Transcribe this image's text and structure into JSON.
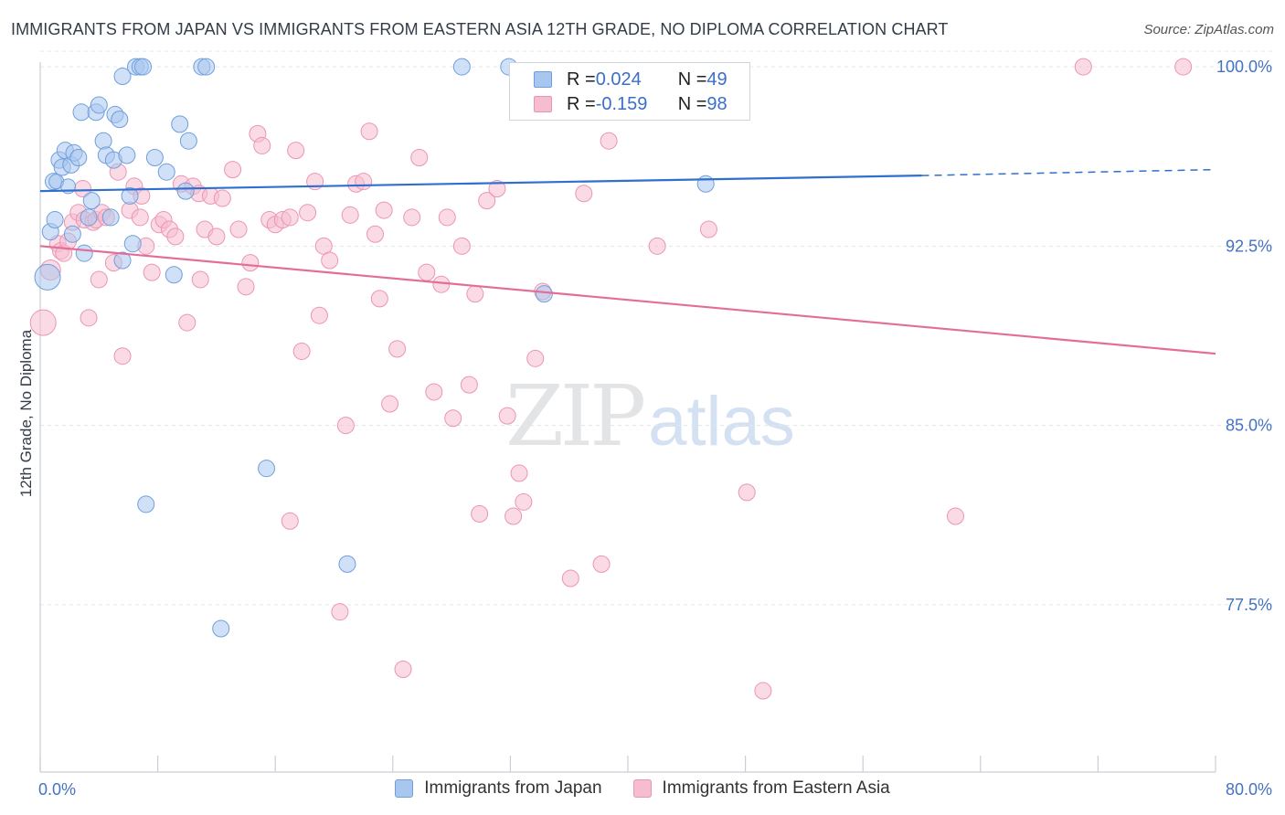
{
  "title": "IMMIGRANTS FROM JAPAN VS IMMIGRANTS FROM EASTERN ASIA 12TH GRADE, NO DIPLOMA CORRELATION CHART",
  "source": "Source: ZipAtlas.com",
  "watermark": {
    "zip": "ZIP",
    "atlas": "atlas"
  },
  "legend": {
    "rows": [
      {
        "r_label": "R = ",
        "r_value": "0.024",
        "n_label": "N = ",
        "n_value": "49"
      },
      {
        "r_label": "R = ",
        "r_value": "-0.159",
        "n_label": "N = ",
        "n_value": "98"
      }
    ]
  },
  "colors": {
    "japan_fill": "#a9c6ee",
    "japan_stroke": "#6f9fdc",
    "japan_line": "#2e6fcf",
    "asia_fill": "#f6bdd0",
    "asia_stroke": "#ec94b3",
    "asia_line": "#e36d97",
    "grid": "#e3e6ea",
    "axis_text": "#4472c4"
  },
  "chart_data": {
    "type": "scatter",
    "title": "IMMIGRANTS FROM JAPAN VS IMMIGRANTS FROM EASTERN ASIA 12TH GRADE, NO DIPLOMA CORRELATION CHART",
    "xlabel": "",
    "ylabel": "12th Grade, No Diploma",
    "xlim": [
      0,
      80
    ],
    "ylim": [
      70.5,
      100.5
    ],
    "x_tick_labels": [
      "0.0%",
      "80.0%"
    ],
    "y_ticks": [
      77.5,
      85.0,
      92.5,
      100.0
    ],
    "y_tick_labels": [
      "77.5%",
      "85.0%",
      "92.5%",
      "100.0%"
    ],
    "grid": true,
    "legend_position": "bottom",
    "series": [
      {
        "name": "Immigrants from Japan",
        "r": 0.024,
        "n": 49,
        "trend": {
          "x": [
            0,
            60
          ],
          "y": [
            94.8,
            95.45
          ],
          "dashed_to": [
            80,
            95.7
          ]
        },
        "points": [
          [
            0.5,
            91.2,
            14
          ],
          [
            0.7,
            93.1,
            9
          ],
          [
            0.9,
            95.2,
            9
          ],
          [
            1.1,
            95.2,
            8
          ],
          [
            1.3,
            96.1,
            9
          ],
          [
            1.5,
            95.8,
            9
          ],
          [
            1.7,
            96.5,
            9
          ],
          [
            1.9,
            95.0,
            8
          ],
          [
            2.1,
            95.9,
            9
          ],
          [
            2.3,
            96.4,
            9
          ],
          [
            2.6,
            96.2,
            9
          ],
          [
            2.8,
            98.1,
            9
          ],
          [
            3.0,
            92.2,
            9
          ],
          [
            3.3,
            93.7,
            9
          ],
          [
            3.8,
            98.1,
            9
          ],
          [
            4.0,
            98.4,
            9
          ],
          [
            4.3,
            96.9,
            9
          ],
          [
            4.5,
            96.3,
            9
          ],
          [
            4.8,
            93.7,
            9
          ],
          [
            5.0,
            96.1,
            9
          ],
          [
            5.1,
            98.0,
            9
          ],
          [
            5.4,
            97.8,
            9
          ],
          [
            5.6,
            99.6,
            9
          ],
          [
            5.9,
            96.3,
            9
          ],
          [
            6.1,
            94.6,
            9
          ],
          [
            6.3,
            92.6,
            9
          ],
          [
            6.5,
            100.0,
            9
          ],
          [
            6.8,
            100.0,
            9
          ],
          [
            7.0,
            100.0,
            9
          ],
          [
            7.2,
            81.7,
            9
          ],
          [
            7.8,
            96.2,
            9
          ],
          [
            8.6,
            95.6,
            9
          ],
          [
            9.1,
            91.3,
            9
          ],
          [
            9.5,
            97.6,
            9
          ],
          [
            9.9,
            94.8,
            9
          ],
          [
            10.1,
            96.9,
            9
          ],
          [
            11.0,
            100.0,
            9
          ],
          [
            11.3,
            100.0,
            9
          ],
          [
            12.3,
            76.5,
            9
          ],
          [
            15.4,
            83.2,
            9
          ],
          [
            20.9,
            79.2,
            9
          ],
          [
            28.7,
            100.0,
            9
          ],
          [
            31.9,
            100.0,
            9
          ],
          [
            34.3,
            90.5,
            9
          ],
          [
            45.3,
            95.1,
            9
          ],
          [
            2.2,
            93.0,
            9
          ],
          [
            1.0,
            93.6,
            9
          ],
          [
            3.5,
            94.4,
            9
          ],
          [
            5.6,
            91.9,
            9
          ]
        ]
      },
      {
        "name": "Immigrants from Eastern Asia",
        "r": -0.159,
        "n": 98,
        "trend": {
          "x": [
            0,
            80
          ],
          "y": [
            92.5,
            88.0
          ]
        },
        "points": [
          [
            0.2,
            89.3,
            14
          ],
          [
            0.7,
            91.5,
            11
          ],
          [
            1.2,
            92.6,
            9
          ],
          [
            1.4,
            92.3,
            9
          ],
          [
            1.6,
            92.2,
            9
          ],
          [
            1.9,
            92.7,
            9
          ],
          [
            2.2,
            93.5,
            9
          ],
          [
            2.6,
            93.9,
            9
          ],
          [
            3.0,
            93.6,
            9
          ],
          [
            3.3,
            89.5,
            9
          ],
          [
            3.6,
            93.5,
            9
          ],
          [
            3.8,
            93.6,
            9
          ],
          [
            4.2,
            93.9,
            9
          ],
          [
            4.5,
            93.7,
            9
          ],
          [
            5.0,
            91.8,
            9
          ],
          [
            5.3,
            95.6,
            9
          ],
          [
            5.6,
            87.9,
            9
          ],
          [
            6.1,
            94.0,
            9
          ],
          [
            6.4,
            95.0,
            9
          ],
          [
            6.8,
            93.7,
            9
          ],
          [
            7.2,
            92.5,
            9
          ],
          [
            7.6,
            91.4,
            9
          ],
          [
            8.1,
            93.4,
            9
          ],
          [
            8.4,
            93.6,
            9
          ],
          [
            8.8,
            93.2,
            9
          ],
          [
            9.2,
            92.9,
            9
          ],
          [
            9.6,
            95.1,
            9
          ],
          [
            10.0,
            89.3,
            9
          ],
          [
            10.4,
            95.0,
            9
          ],
          [
            10.8,
            94.7,
            9
          ],
          [
            11.2,
            93.2,
            9
          ],
          [
            11.6,
            94.6,
            9
          ],
          [
            12.0,
            92.9,
            9
          ],
          [
            12.4,
            94.5,
            9
          ],
          [
            13.1,
            95.7,
            9
          ],
          [
            13.5,
            93.2,
            9
          ],
          [
            14.0,
            90.8,
            9
          ],
          [
            14.3,
            91.8,
            9
          ],
          [
            14.8,
            97.2,
            9
          ],
          [
            15.1,
            96.7,
            9
          ],
          [
            15.6,
            93.6,
            9
          ],
          [
            16.0,
            93.4,
            9
          ],
          [
            16.5,
            93.6,
            9
          ],
          [
            17.0,
            93.7,
            9
          ],
          [
            17.4,
            96.5,
            9
          ],
          [
            17.8,
            88.1,
            9
          ],
          [
            18.2,
            93.9,
            9
          ],
          [
            18.7,
            95.2,
            9
          ],
          [
            19.0,
            89.6,
            9
          ],
          [
            19.3,
            92.5,
            9
          ],
          [
            19.7,
            91.9,
            9
          ],
          [
            20.4,
            77.2,
            9
          ],
          [
            20.8,
            85.0,
            9
          ],
          [
            21.1,
            93.8,
            9
          ],
          [
            21.5,
            95.1,
            9
          ],
          [
            22.0,
            95.2,
            9
          ],
          [
            22.4,
            97.3,
            9
          ],
          [
            22.8,
            93.0,
            9
          ],
          [
            23.1,
            90.3,
            9
          ],
          [
            23.4,
            94.0,
            9
          ],
          [
            23.8,
            85.9,
            9
          ],
          [
            24.3,
            88.2,
            9
          ],
          [
            24.7,
            74.8,
            9
          ],
          [
            25.3,
            93.7,
            9
          ],
          [
            25.8,
            96.2,
            9
          ],
          [
            26.3,
            91.4,
            9
          ],
          [
            26.8,
            86.4,
            9
          ],
          [
            27.3,
            90.9,
            9
          ],
          [
            27.7,
            93.7,
            9
          ],
          [
            28.1,
            85.3,
            9
          ],
          [
            28.7,
            92.5,
            9
          ],
          [
            29.2,
            86.7,
            9
          ],
          [
            29.6,
            90.5,
            9
          ],
          [
            29.9,
            81.3,
            9
          ],
          [
            30.4,
            94.4,
            9
          ],
          [
            31.1,
            94.9,
            9
          ],
          [
            31.8,
            85.4,
            9
          ],
          [
            32.2,
            81.2,
            9
          ],
          [
            32.6,
            83.0,
            9
          ],
          [
            32.9,
            81.8,
            9
          ],
          [
            33.7,
            87.8,
            9
          ],
          [
            34.2,
            90.6,
            9
          ],
          [
            36.1,
            78.6,
            9
          ],
          [
            37.0,
            94.7,
            9
          ],
          [
            38.2,
            79.2,
            9
          ],
          [
            38.7,
            96.9,
            9
          ],
          [
            42.0,
            92.5,
            9
          ],
          [
            45.5,
            93.2,
            9
          ],
          [
            48.1,
            82.2,
            9
          ],
          [
            49.2,
            73.9,
            9
          ],
          [
            62.3,
            81.2,
            9
          ],
          [
            71.0,
            100.0,
            9
          ],
          [
            77.8,
            100.0,
            9
          ],
          [
            17.0,
            81.0,
            9
          ],
          [
            2.9,
            94.9,
            9
          ],
          [
            6.9,
            94.6,
            9
          ],
          [
            10.9,
            91.1,
            9
          ],
          [
            4.0,
            91.1,
            9
          ]
        ]
      }
    ]
  },
  "bottom_legend": [
    "Immigrants from Japan",
    "Immigrants from Eastern Asia"
  ]
}
